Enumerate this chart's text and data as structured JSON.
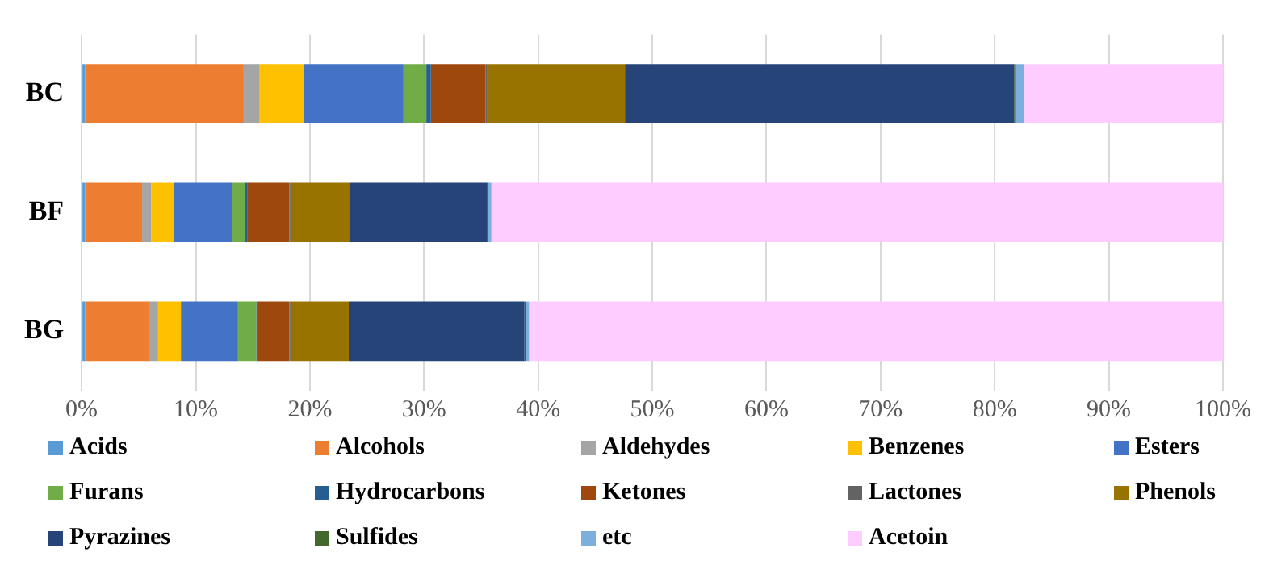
{
  "chart_data": {
    "type": "bar",
    "orientation": "horizontal",
    "stacked": true,
    "categories": [
      "BC",
      "BF",
      "BG"
    ],
    "series": [
      {
        "name": "Acids",
        "color": "#5b9bd5",
        "values": [
          0.3,
          0.3,
          0.3
        ]
      },
      {
        "name": "Alcohols",
        "color": "#ed7d31",
        "values": [
          13.9,
          5.0,
          5.6
        ]
      },
      {
        "name": "Aldehydes",
        "color": "#a5a5a5",
        "values": [
          1.4,
          0.8,
          0.8
        ]
      },
      {
        "name": "Benzenes",
        "color": "#ffc000",
        "values": [
          3.9,
          2.0,
          2.0
        ]
      },
      {
        "name": "Esters",
        "color": "#4472c4",
        "values": [
          8.7,
          5.1,
          5.0
        ]
      },
      {
        "name": "Furans",
        "color": "#70ad47",
        "values": [
          2.0,
          1.1,
          1.6
        ]
      },
      {
        "name": "Hydrocarbons",
        "color": "#255e91",
        "values": [
          0.4,
          0.2,
          0.1
        ]
      },
      {
        "name": "Ketones",
        "color": "#9e480e",
        "values": [
          4.8,
          3.7,
          2.8
        ]
      },
      {
        "name": "Lactones",
        "color": "#636363",
        "values": [
          0.1,
          0.1,
          0.1
        ]
      },
      {
        "name": "Phenols",
        "color": "#997300",
        "values": [
          12.1,
          5.2,
          5.1
        ]
      },
      {
        "name": "Pyrazines",
        "color": "#264478",
        "values": [
          34.1,
          12.0,
          15.4
        ]
      },
      {
        "name": "Sulfides",
        "color": "#43682b",
        "values": [
          0.1,
          0.1,
          0.1
        ]
      },
      {
        "name": "etc",
        "color": "#7cafdd",
        "values": [
          0.8,
          0.3,
          0.3
        ]
      },
      {
        "name": "Acetoin",
        "color": "#ffccff",
        "values": [
          17.4,
          64.1,
          60.8
        ]
      }
    ],
    "xlim": [
      0,
      100
    ],
    "xticks": [
      {
        "value": 0,
        "label": "0%"
      },
      {
        "value": 10,
        "label": "10%"
      },
      {
        "value": 20,
        "label": "20%"
      },
      {
        "value": 30,
        "label": "30%"
      },
      {
        "value": 40,
        "label": "40%"
      },
      {
        "value": 50,
        "label": "50%"
      },
      {
        "value": 60,
        "label": "60%"
      },
      {
        "value": 70,
        "label": "70%"
      },
      {
        "value": 80,
        "label": "80%"
      },
      {
        "value": 90,
        "label": "90%"
      },
      {
        "value": 100,
        "label": "100%"
      }
    ],
    "grid": "x",
    "legend": "bottom"
  }
}
